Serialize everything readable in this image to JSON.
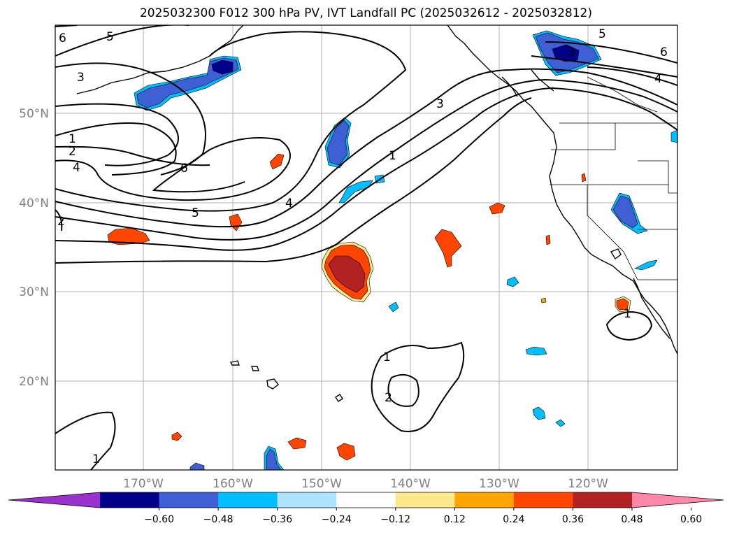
{
  "title": "2025032300 F012 300 hPa PV, IVT Landfall PC (2025032612 - 2025032812)",
  "latitude_labels": [
    "50°N",
    "40°N",
    "30°N",
    "20°N"
  ],
  "longitude_labels": [
    "170°W",
    "160°W",
    "150°W",
    "140°W",
    "130°W",
    "120°W"
  ],
  "contour_labels": [
    "6",
    "5",
    "3",
    "1",
    "2",
    "4",
    "6",
    "5",
    "2",
    "4",
    "3",
    "1",
    "1",
    "2",
    "1",
    "3",
    "5",
    "6",
    "4",
    "1"
  ],
  "colorbar": {
    "ticks": [
      "−0.60",
      "−0.48",
      "−0.36",
      "−0.24",
      "−0.12",
      "0.12",
      "0.24",
      "0.36",
      "0.48",
      "0.60"
    ],
    "colors": [
      "#9932cc",
      "#00008b",
      "#3f5fd4",
      "#00bfff",
      "#aee3ff",
      "#ffffff",
      "#fce98c",
      "#ffa500",
      "#ff4500",
      "#b22222",
      "#ff88aa"
    ]
  },
  "colors": {
    "strong_negative": "#00008b",
    "negative": "#3f5fd4",
    "weak_negative": "#00bfff",
    "light_negative": "#aee3ff",
    "light_positive": "#fce98c",
    "weak_positive": "#ffa500",
    "positive": "#ff4500",
    "strong_positive": "#b22222"
  }
}
